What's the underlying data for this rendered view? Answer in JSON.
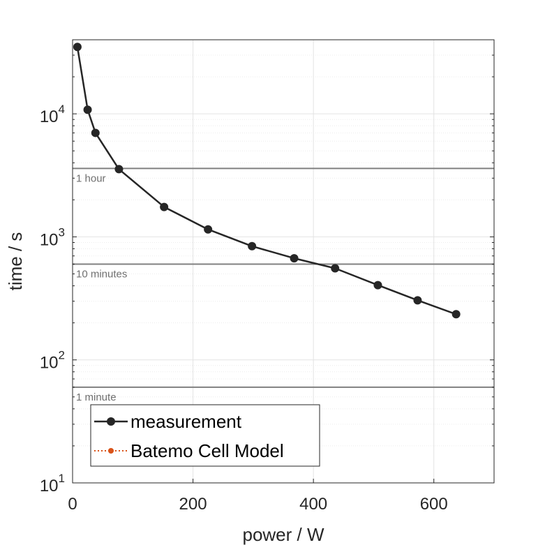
{
  "chart_data": {
    "type": "line",
    "xlabel": "power / W",
    "ylabel": "time / s",
    "xlim": [
      0,
      700
    ],
    "ylim": [
      10,
      40000
    ],
    "yscale": "log",
    "grid": true,
    "legend_position": "bottom-left",
    "x_ticks": [
      {
        "value": 0,
        "label": "0"
      },
      {
        "value": 200,
        "label": "200"
      },
      {
        "value": 400,
        "label": "400"
      },
      {
        "value": 600,
        "label": "600"
      }
    ],
    "y_ticks": [
      {
        "value": 10,
        "base": "10",
        "exp": "1"
      },
      {
        "value": 100,
        "base": "10",
        "exp": "2"
      },
      {
        "value": 1000,
        "base": "10",
        "exp": "3"
      },
      {
        "value": 10000,
        "base": "10",
        "exp": "4"
      }
    ],
    "reference_lines": [
      {
        "value": 3600,
        "label": "1 hour",
        "color": "#808080"
      },
      {
        "value": 600,
        "label": "10 minutes",
        "color": "#808080"
      },
      {
        "value": 60,
        "label": "1 minute",
        "color": "#808080"
      }
    ],
    "series": [
      {
        "name": "measurement",
        "color": "#262626",
        "style": "solid",
        "points": [
          {
            "x": 8,
            "y": 35000
          },
          {
            "x": 25,
            "y": 10800
          },
          {
            "x": 38,
            "y": 7000
          },
          {
            "x": 77,
            "y": 3550
          },
          {
            "x": 152,
            "y": 1750
          },
          {
            "x": 225,
            "y": 1150
          },
          {
            "x": 298,
            "y": 840
          },
          {
            "x": 368,
            "y": 670
          },
          {
            "x": 436,
            "y": 555
          },
          {
            "x": 507,
            "y": 405
          },
          {
            "x": 573,
            "y": 305
          },
          {
            "x": 637,
            "y": 235
          }
        ]
      },
      {
        "name": "Batemo Cell Model",
        "color": "#D95319",
        "style": "dotted",
        "points": []
      }
    ]
  }
}
